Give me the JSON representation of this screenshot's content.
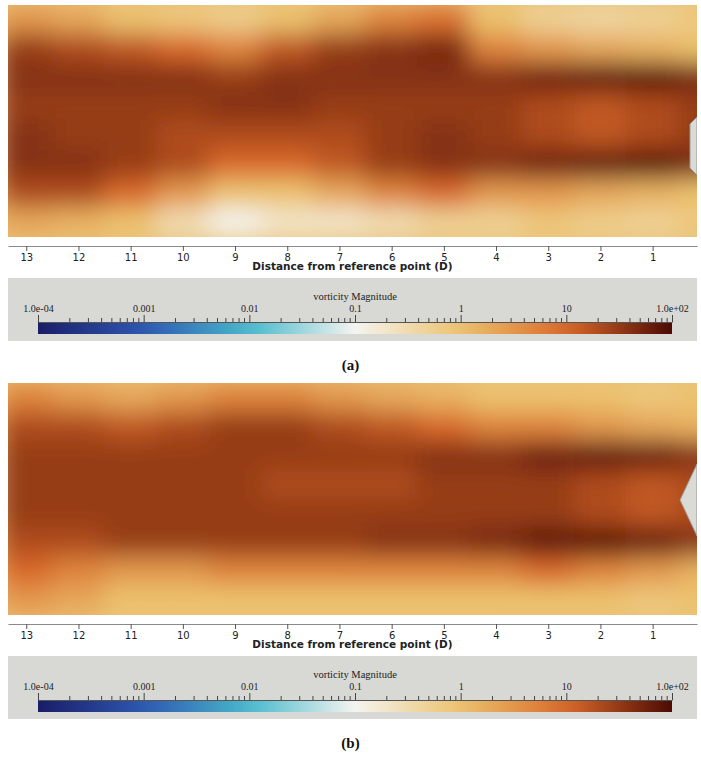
{
  "chart_data": [
    {
      "type": "heatmap",
      "title": "(a)",
      "xlabel": "Distance from reference point (D)",
      "xlim": [
        13.35,
        0.15
      ],
      "xticks": [
        13,
        12,
        11,
        10,
        9,
        8,
        7,
        6,
        5,
        4,
        3,
        2,
        1
      ],
      "tick_labels": "x",
      "x": [
        13,
        12,
        11,
        10,
        9,
        8,
        7,
        6,
        5,
        4,
        3,
        2,
        1,
        0
      ],
      "cells": [
        [
          3,
          2,
          1,
          0.8,
          0.6,
          1,
          2,
          5,
          8,
          1,
          0.5,
          0.4,
          0.5,
          0.8
        ],
        [
          30,
          20,
          15,
          10,
          5,
          15,
          30,
          40,
          50,
          5,
          3,
          2,
          1.5,
          1
        ],
        [
          40,
          40,
          40,
          40,
          30,
          40,
          40,
          40,
          40,
          40,
          60,
          80,
          90,
          50
        ],
        [
          30,
          30,
          30,
          30,
          40,
          40,
          30,
          30,
          30,
          30,
          20,
          15,
          20,
          30
        ],
        [
          40,
          30,
          30,
          20,
          20,
          20,
          20,
          30,
          40,
          30,
          20,
          15,
          20,
          30
        ],
        [
          40,
          40,
          30,
          20,
          10,
          10,
          15,
          30,
          40,
          40,
          60,
          80,
          90,
          50
        ],
        [
          20,
          20,
          10,
          3,
          1,
          1,
          2,
          5,
          10,
          3,
          3,
          2,
          1.5,
          1
        ],
        [
          2,
          1.5,
          1,
          0.3,
          0.1,
          0.2,
          0.2,
          0.3,
          0.5,
          0.5,
          0.8,
          0.6,
          0.5,
          0.8
        ]
      ],
      "colorbar": {
        "title": "vorticity Magnitude",
        "log": true,
        "range": [
          0.0001,
          100
        ],
        "ticks": [
          {
            "value": 0.0001,
            "label": "1.0e-04"
          },
          0.001,
          0.01,
          0.1,
          1,
          10,
          {
            "value": 100,
            "label": "1.0e+02"
          }
        ],
        "minor_ticks": [
          0.0002,
          0.0003,
          0.0004,
          0.0005,
          0.0006,
          0.0007,
          0.0008,
          0.0009,
          0.002,
          0.003,
          0.004,
          0.005,
          0.006,
          0.007,
          0.008,
          0.009,
          0.02,
          0.03,
          0.04,
          0.05,
          0.06,
          0.07,
          0.08,
          0.09,
          0.2,
          0.3,
          0.4,
          0.5,
          0.6,
          0.7,
          0.8,
          0.9,
          2,
          3,
          4,
          5,
          6,
          7,
          8,
          9,
          20,
          30,
          40,
          50,
          60,
          70,
          80,
          90
        ]
      }
    },
    {
      "type": "heatmap",
      "title": "(b)",
      "xlabel": "Distance from reference point (D)",
      "xlim": [
        13.35,
        0.15
      ],
      "xticks": [
        13,
        12,
        11,
        10,
        9,
        8,
        7,
        6,
        5,
        4,
        3,
        2,
        1
      ],
      "tick_labels": "x",
      "x": [
        13,
        12,
        11,
        10,
        9,
        8,
        7,
        6,
        5,
        4,
        3,
        2,
        1,
        0
      ],
      "cells": [
        [
          5,
          3,
          2,
          3,
          5,
          5,
          3,
          2,
          1.5,
          1,
          1,
          1,
          0.8,
          1
        ],
        [
          20,
          20,
          15,
          20,
          30,
          30,
          20,
          15,
          10,
          5,
          5,
          3,
          2,
          1.5
        ],
        [
          30,
          30,
          30,
          30,
          30,
          30,
          30,
          30,
          40,
          40,
          60,
          80,
          70,
          40
        ],
        [
          30,
          30,
          30,
          30,
          30,
          20,
          20,
          20,
          30,
          30,
          30,
          20,
          15,
          20
        ],
        [
          30,
          30,
          30,
          30,
          30,
          30,
          30,
          30,
          30,
          30,
          30,
          20,
          15,
          20
        ],
        [
          20,
          20,
          30,
          30,
          30,
          30,
          30,
          40,
          40,
          50,
          80,
          90,
          70,
          40
        ],
        [
          10,
          5,
          3,
          3,
          5,
          5,
          5,
          5,
          5,
          5,
          10,
          5,
          3,
          1.5
        ],
        [
          3,
          2,
          1,
          1,
          1,
          1,
          1,
          1,
          1,
          1,
          1,
          1,
          0.8,
          1
        ]
      ],
      "colorbar": {
        "title": "vorticity Magnitude",
        "log": true,
        "range": [
          0.0001,
          100
        ],
        "ticks": [
          {
            "value": 0.0001,
            "label": "1.0e-04"
          },
          0.001,
          0.01,
          0.1,
          1,
          10,
          {
            "value": 100,
            "label": "1.0e+02"
          }
        ],
        "minor_ticks": [
          0.0002,
          0.0003,
          0.0004,
          0.0005,
          0.0006,
          0.0007,
          0.0008,
          0.0009,
          0.002,
          0.003,
          0.004,
          0.005,
          0.006,
          0.007,
          0.008,
          0.009,
          0.02,
          0.03,
          0.04,
          0.05,
          0.06,
          0.07,
          0.08,
          0.09,
          0.2,
          0.3,
          0.4,
          0.5,
          0.6,
          0.7,
          0.8,
          0.9,
          2,
          3,
          4,
          5,
          6,
          7,
          8,
          9,
          20,
          30,
          40,
          50,
          60,
          70,
          80,
          90
        ]
      }
    }
  ]
}
